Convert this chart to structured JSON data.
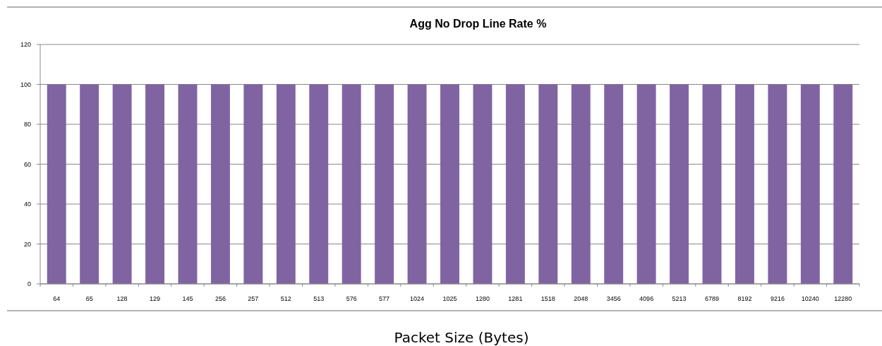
{
  "chart_data": {
    "type": "bar",
    "title": "Agg No Drop Line Rate %",
    "xlabel": "Packet Size (Bytes)",
    "categories": [
      "64",
      "65",
      "128",
      "129",
      "145",
      "256",
      "257",
      "512",
      "513",
      "576",
      "577",
      "1024",
      "1025",
      "1280",
      "1281",
      "1518",
      "2048",
      "3456",
      "4096",
      "5213",
      "6789",
      "8192",
      "9216",
      "10240",
      "12280"
    ],
    "values": [
      100,
      100,
      100,
      100,
      100,
      100,
      100,
      100,
      100,
      100,
      100,
      100,
      100,
      100,
      100,
      100,
      100,
      100,
      100,
      100,
      100,
      100,
      100,
      100,
      100
    ],
    "color": "#8064a2",
    "ylim": [
      0,
      120
    ],
    "yticks": [
      0,
      20,
      40,
      60,
      80,
      100,
      120
    ],
    "grid": "y"
  }
}
